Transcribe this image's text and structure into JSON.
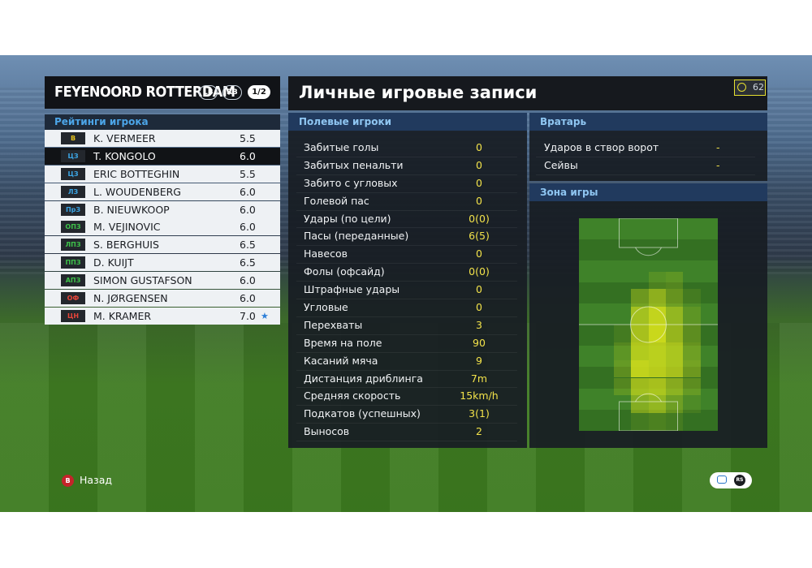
{
  "team": {
    "name": "FEYENOORD ROTTERDAM",
    "lb": "LB",
    "rb": "RB",
    "page": "1/2"
  },
  "ratings_title": "Рейтинги игрока",
  "players": [
    {
      "pos": "В",
      "pos_color": "#e6c21e",
      "name": "K. VERMEER",
      "rating": "5.5",
      "selected": false,
      "star": false
    },
    {
      "pos": "ЦЗ",
      "pos_color": "#3ba6e6",
      "name": "T. KONGOLO",
      "rating": "6.0",
      "selected": true,
      "star": false
    },
    {
      "pos": "ЦЗ",
      "pos_color": "#3ba6e6",
      "name": "ERIC BOTTEGHIN",
      "rating": "5.5",
      "selected": false,
      "star": false
    },
    {
      "pos": "ЛЗ",
      "pos_color": "#3ba6e6",
      "name": "L. WOUDENBERG",
      "rating": "6.0",
      "selected": false,
      "star": false
    },
    {
      "pos": "ПрЗ",
      "pos_color": "#3ba6e6",
      "name": "B. NIEUWKOOP",
      "rating": "6.0",
      "selected": false,
      "star": false
    },
    {
      "pos": "ОПЗ",
      "pos_color": "#3ec24a",
      "name": "M. VEJINOVIC",
      "rating": "6.0",
      "selected": false,
      "star": false
    },
    {
      "pos": "ЛПЗ",
      "pos_color": "#3ec24a",
      "name": "S. BERGHUIS",
      "rating": "6.5",
      "selected": false,
      "star": false
    },
    {
      "pos": "ППЗ",
      "pos_color": "#3ec24a",
      "name": "D. KUIJT",
      "rating": "6.5",
      "selected": false,
      "star": false
    },
    {
      "pos": "АПЗ",
      "pos_color": "#3ec24a",
      "name": "SIMON GUSTAFSON",
      "rating": "6.0",
      "selected": false,
      "star": false
    },
    {
      "pos": "ОФ",
      "pos_color": "#e8453a",
      "name": "N. JØRGENSEN",
      "rating": "6.0",
      "selected": false,
      "star": false
    },
    {
      "pos": "ЦН",
      "pos_color": "#e8453a",
      "name": "M. KRAMER",
      "rating": "7.0",
      "selected": false,
      "star": true
    }
  ],
  "main_title": "Личные игровые записи",
  "timer": "62",
  "field_head": "Полевые игроки",
  "field_stats": [
    {
      "label": "Забитые голы",
      "value": "0"
    },
    {
      "label": "Забитых пенальти",
      "value": "0"
    },
    {
      "label": "Забито с угловых",
      "value": "0"
    },
    {
      "label": "Голевой пас",
      "value": "0"
    },
    {
      "label": "Удары (по цели)",
      "value": "0(0)"
    },
    {
      "label": "Пасы (переданные)",
      "value": "6(5)"
    },
    {
      "label": "Навесов",
      "value": "0"
    },
    {
      "label": "Фолы (офсайд)",
      "value": "0(0)"
    },
    {
      "label": "Штрафные удары",
      "value": "0"
    },
    {
      "label": "Угловые",
      "value": "0"
    },
    {
      "label": "Перехваты",
      "value": "3"
    },
    {
      "label": "Время на поле",
      "value": "90"
    },
    {
      "label": "Касаний мяча",
      "value": "9"
    },
    {
      "label": "Дистанция дриблинга",
      "value": "7m"
    },
    {
      "label": "Средняя скорость",
      "value": "15km/h"
    },
    {
      "label": "Подкатов (успешных)",
      "value": "3(1)"
    },
    {
      "label": "Выносов",
      "value": "2"
    }
  ],
  "gk_head": "Вратарь",
  "gk_stats": [
    {
      "label": "Ударов в створ ворот",
      "value": "-"
    },
    {
      "label": "Сейвы",
      "value": "-"
    }
  ],
  "zone_head": "Зона игры",
  "heatmap": {
    "cols": 8,
    "rows": 12,
    "cells": [
      [
        0,
        0,
        0,
        0,
        0,
        0,
        0,
        0
      ],
      [
        0,
        0,
        0,
        0,
        0,
        0,
        0,
        0
      ],
      [
        0,
        0,
        0,
        0,
        0,
        0,
        0,
        0
      ],
      [
        0,
        0,
        0,
        0,
        0.15,
        0.2,
        0,
        0
      ],
      [
        0,
        0,
        0,
        0.35,
        0.55,
        0.3,
        0.1,
        0
      ],
      [
        0,
        0,
        0,
        0.65,
        0.85,
        0.55,
        0.2,
        0
      ],
      [
        0,
        0,
        0.1,
        0.7,
        0.9,
        0.6,
        0.25,
        0
      ],
      [
        0,
        0,
        0.2,
        0.75,
        0.8,
        0.7,
        0.3,
        0
      ],
      [
        0,
        0,
        0.25,
        0.85,
        0.8,
        0.7,
        0.35,
        0
      ],
      [
        0,
        0,
        0.2,
        0.65,
        0.7,
        0.5,
        0.25,
        0
      ],
      [
        0,
        0,
        0,
        0.45,
        0.55,
        0.3,
        0.1,
        0
      ],
      [
        0,
        0,
        0,
        0.1,
        0.15,
        0.1,
        0,
        0
      ]
    ],
    "heat_color": "#d9e31b"
  },
  "footer": {
    "back_button": "B",
    "back_label": "Назад",
    "rs_label": "RS"
  }
}
